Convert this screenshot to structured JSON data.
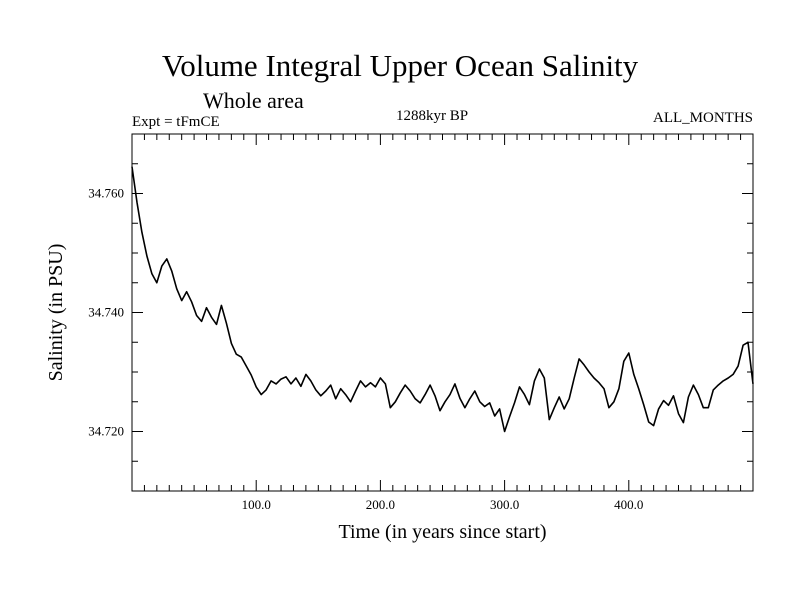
{
  "header": {
    "title": "Volume Integral Upper Ocean Salinity",
    "subtitle": "Whole area",
    "expt": "Expt = tFmCE",
    "epoch": "1288kyr BP",
    "months": "ALL_MONTHS"
  },
  "chart_data": {
    "type": "line",
    "title": "Volume Integral Upper Ocean Salinity",
    "subtitle": "Whole area",
    "xlabel": "Time (in years since start)",
    "ylabel": "Salinity (in PSU)",
    "xlim": [
      0,
      500
    ],
    "ylim": [
      34.71,
      34.77
    ],
    "xticks": [
      100,
      200,
      300,
      400
    ],
    "xtick_labels": [
      "100.0",
      "200.0",
      "300.0",
      "400.0"
    ],
    "yticks": [
      34.72,
      34.74,
      34.76
    ],
    "ytick_labels": [
      "34.720",
      "34.740",
      "34.760"
    ],
    "series": [
      {
        "name": "Salinity",
        "x": [
          0,
          4,
          8,
          12,
          16,
          20,
          24,
          28,
          32,
          36,
          40,
          44,
          48,
          52,
          56,
          60,
          64,
          68,
          72,
          76,
          80,
          84,
          88,
          92,
          96,
          100,
          104,
          108,
          112,
          116,
          120,
          124,
          128,
          132,
          136,
          140,
          144,
          148,
          152,
          156,
          160,
          164,
          168,
          172,
          176,
          180,
          184,
          188,
          192,
          196,
          200,
          204,
          208,
          212,
          216,
          220,
          224,
          228,
          232,
          236,
          240,
          244,
          248,
          252,
          256,
          260,
          264,
          268,
          272,
          276,
          280,
          284,
          288,
          292,
          296,
          300,
          304,
          308,
          312,
          316,
          320,
          324,
          328,
          332,
          336,
          340,
          344,
          348,
          352,
          356,
          360,
          364,
          368,
          372,
          376,
          380,
          384,
          388,
          392,
          396,
          400,
          404,
          408,
          412,
          416,
          420,
          424,
          428,
          432,
          436,
          440,
          444,
          448,
          452,
          456,
          460,
          464,
          468,
          472,
          476,
          480,
          484,
          488,
          492,
          496,
          500
        ],
        "values": [
          34.7645,
          34.7585,
          34.7535,
          34.7495,
          34.7465,
          34.745,
          34.7478,
          34.749,
          34.747,
          34.744,
          34.742,
          34.7435,
          34.7418,
          34.7395,
          34.7385,
          34.7408,
          34.7392,
          34.738,
          34.7412,
          34.7382,
          34.7348,
          34.733,
          34.7325,
          34.731,
          34.7295,
          34.7275,
          34.7262,
          34.727,
          34.7285,
          34.728,
          34.7288,
          34.7292,
          34.728,
          34.729,
          34.7276,
          34.7296,
          34.7285,
          34.727,
          34.726,
          34.7268,
          34.7278,
          34.7255,
          34.7272,
          34.7262,
          34.725,
          34.7268,
          34.7285,
          34.7275,
          34.7282,
          34.7275,
          34.729,
          34.728,
          34.724,
          34.725,
          34.7265,
          34.7278,
          34.7268,
          34.7255,
          34.7248,
          34.7262,
          34.7278,
          34.726,
          34.7235,
          34.725,
          34.7262,
          34.728,
          34.7256,
          34.724,
          34.7255,
          34.7268,
          34.725,
          34.7242,
          34.7248,
          34.7226,
          34.7238,
          34.72,
          34.7225,
          34.7248,
          34.7275,
          34.7262,
          34.7245,
          34.7285,
          34.7305,
          34.729,
          34.722,
          34.724,
          34.7258,
          34.7238,
          34.7255,
          34.729,
          34.7322,
          34.7312,
          34.73,
          34.729,
          34.7282,
          34.7272,
          34.724,
          34.725,
          34.7272,
          34.7318,
          34.7332,
          34.7296,
          34.7272,
          34.7245,
          34.7216,
          34.721,
          34.7238,
          34.7252,
          34.7244,
          34.726,
          34.723,
          34.7215,
          34.7258,
          34.7278,
          34.7262,
          34.724,
          34.724,
          34.727,
          34.7278,
          34.7285,
          34.729,
          34.7296,
          34.731,
          34.7345,
          34.735,
          34.728
        ]
      }
    ]
  }
}
